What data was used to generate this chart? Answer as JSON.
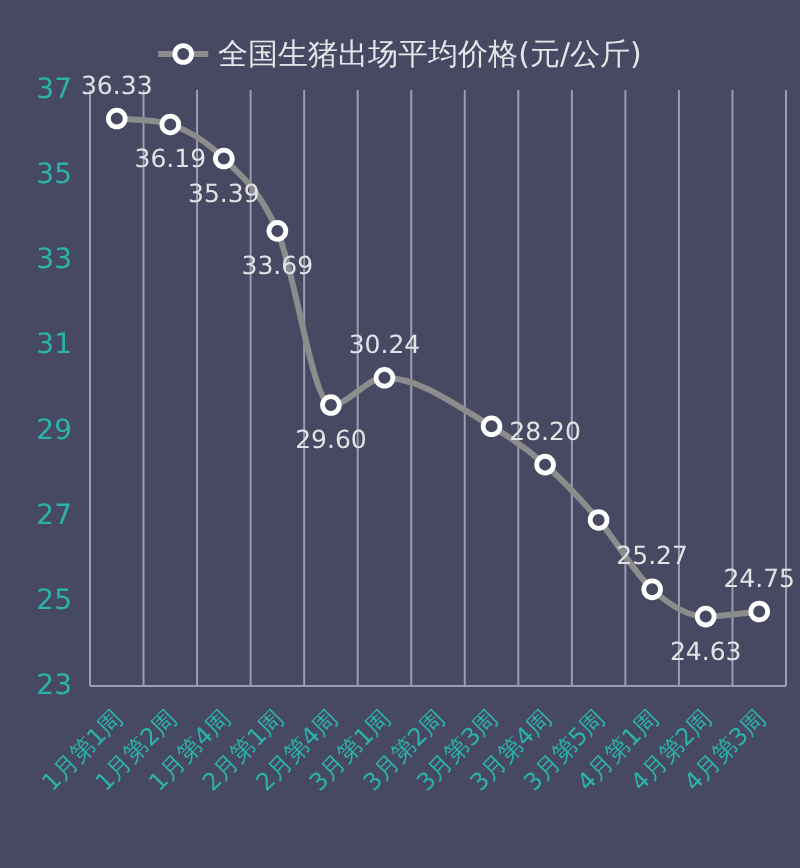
{
  "chart_data": {
    "type": "line",
    "categories": [
      "1月第1周",
      "1月第2周",
      "1月第4周",
      "2月第1周",
      "2月第4周",
      "3月第1周",
      "3月第2周",
      "3月第3周",
      "3月第4周",
      "3月第5周",
      "4月第1周",
      "4月第2周",
      "4月第3周"
    ],
    "series": [
      {
        "name": "全国生猪出场平均价格(元/公斤)",
        "color": "#8c8c8c",
        "values": [
          36.33,
          36.19,
          35.39,
          33.69,
          29.6,
          30.24,
          null,
          29.1,
          28.2,
          26.9,
          25.27,
          24.63,
          24.75
        ],
        "value_labels": [
          "36.33",
          "36.19",
          "35.39",
          "33.69",
          "29.60",
          "30.24",
          null,
          null,
          "28.20",
          null,
          "25.27",
          "24.63",
          "24.75"
        ]
      }
    ],
    "ylim": [
      23,
      37
    ],
    "yticks": [
      23,
      25,
      27,
      29,
      31,
      33,
      35,
      37
    ],
    "grid": "x",
    "legend": "top",
    "marker": "circle"
  }
}
